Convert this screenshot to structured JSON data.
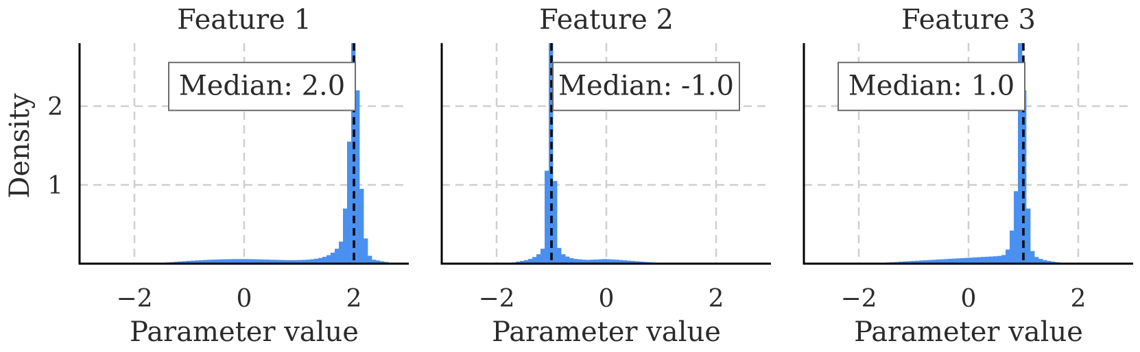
{
  "chart_data": [
    {
      "type": "histogram",
      "title": "Feature 1",
      "xlabel": "Parameter value",
      "ylabel": "Density",
      "xlim": [
        -3,
        3
      ],
      "ylim": [
        0,
        2.8
      ],
      "xticks": [
        -2,
        0,
        2
      ],
      "yticks": [
        1,
        2
      ],
      "xtick_labels": [
        "−2",
        "0",
        "2"
      ],
      "ytick_labels": [
        "1",
        "2"
      ],
      "grid": true,
      "bar_color": "#4a90f0",
      "median": 2.0,
      "median_label": "Median: 2.0",
      "bin_width": 0.075,
      "bins": [
        {
          "x": -1.8,
          "y": 0.004
        },
        {
          "x": -1.725,
          "y": 0.006
        },
        {
          "x": -1.65,
          "y": 0.008
        },
        {
          "x": -1.575,
          "y": 0.01
        },
        {
          "x": -1.5,
          "y": 0.013
        },
        {
          "x": -1.425,
          "y": 0.016
        },
        {
          "x": -1.35,
          "y": 0.02
        },
        {
          "x": -1.275,
          "y": 0.024
        },
        {
          "x": -1.2,
          "y": 0.028
        },
        {
          "x": -1.125,
          "y": 0.031
        },
        {
          "x": -1.05,
          "y": 0.035
        },
        {
          "x": -0.975,
          "y": 0.038
        },
        {
          "x": -0.9,
          "y": 0.041
        },
        {
          "x": -0.825,
          "y": 0.044
        },
        {
          "x": -0.75,
          "y": 0.047
        },
        {
          "x": -0.675,
          "y": 0.049
        },
        {
          "x": -0.6,
          "y": 0.051
        },
        {
          "x": -0.525,
          "y": 0.053
        },
        {
          "x": -0.45,
          "y": 0.055
        },
        {
          "x": -0.375,
          "y": 0.056
        },
        {
          "x": -0.3,
          "y": 0.057
        },
        {
          "x": -0.225,
          "y": 0.058
        },
        {
          "x": -0.15,
          "y": 0.058
        },
        {
          "x": -0.075,
          "y": 0.058
        },
        {
          "x": 0.0,
          "y": 0.058
        },
        {
          "x": 0.075,
          "y": 0.057
        },
        {
          "x": 0.15,
          "y": 0.056
        },
        {
          "x": 0.225,
          "y": 0.055
        },
        {
          "x": 0.3,
          "y": 0.053
        },
        {
          "x": 0.375,
          "y": 0.052
        },
        {
          "x": 0.45,
          "y": 0.05
        },
        {
          "x": 0.525,
          "y": 0.049
        },
        {
          "x": 0.6,
          "y": 0.047
        },
        {
          "x": 0.675,
          "y": 0.046
        },
        {
          "x": 0.75,
          "y": 0.045
        },
        {
          "x": 0.825,
          "y": 0.045
        },
        {
          "x": 0.9,
          "y": 0.045
        },
        {
          "x": 0.975,
          "y": 0.046
        },
        {
          "x": 1.05,
          "y": 0.048
        },
        {
          "x": 1.125,
          "y": 0.051
        },
        {
          "x": 1.2,
          "y": 0.056
        },
        {
          "x": 1.275,
          "y": 0.063
        },
        {
          "x": 1.35,
          "y": 0.073
        },
        {
          "x": 1.425,
          "y": 0.087
        },
        {
          "x": 1.5,
          "y": 0.108
        },
        {
          "x": 1.575,
          "y": 0.14
        },
        {
          "x": 1.65,
          "y": 0.19
        },
        {
          "x": 1.725,
          "y": 0.28
        },
        {
          "x": 1.8,
          "y": 0.7
        },
        {
          "x": 1.875,
          "y": 1.55
        },
        {
          "x": 1.95,
          "y": 2.8
        },
        {
          "x": 2.025,
          "y": 2.2
        },
        {
          "x": 2.1,
          "y": 0.95
        },
        {
          "x": 2.175,
          "y": 0.32
        },
        {
          "x": 2.25,
          "y": 0.1
        },
        {
          "x": 2.325,
          "y": 0.05
        },
        {
          "x": 2.4,
          "y": 0.04
        },
        {
          "x": 2.475,
          "y": 0.03
        },
        {
          "x": 2.55,
          "y": 0.022
        },
        {
          "x": 2.625,
          "y": 0.014
        },
        {
          "x": 2.7,
          "y": 0.008
        },
        {
          "x": 2.775,
          "y": 0.004
        }
      ]
    },
    {
      "type": "histogram",
      "title": "Feature 2",
      "xlabel": "Parameter value",
      "ylabel": "",
      "xlim": [
        -3,
        3
      ],
      "ylim": [
        0,
        2.8
      ],
      "xticks": [
        -2,
        0,
        2
      ],
      "yticks": [
        1,
        2
      ],
      "xtick_labels": [
        "−2",
        "0",
        "2"
      ],
      "ytick_labels": [],
      "grid": true,
      "bar_color": "#4a90f0",
      "median": -1.0,
      "median_label": "Median: -1.0",
      "bin_width": 0.075,
      "bins": [
        {
          "x": -1.8,
          "y": 0.008
        },
        {
          "x": -1.725,
          "y": 0.015
        },
        {
          "x": -1.65,
          "y": 0.025
        },
        {
          "x": -1.575,
          "y": 0.035
        },
        {
          "x": -1.5,
          "y": 0.045
        },
        {
          "x": -1.425,
          "y": 0.06
        },
        {
          "x": -1.35,
          "y": 0.085
        },
        {
          "x": -1.275,
          "y": 0.12
        },
        {
          "x": -1.2,
          "y": 0.19
        },
        {
          "x": -1.125,
          "y": 1.18
        },
        {
          "x": -1.05,
          "y": 2.8
        },
        {
          "x": -0.975,
          "y": 1.05
        },
        {
          "x": -0.9,
          "y": 0.2
        },
        {
          "x": -0.825,
          "y": 0.12
        },
        {
          "x": -0.75,
          "y": 0.09
        },
        {
          "x": -0.675,
          "y": 0.07
        },
        {
          "x": -0.6,
          "y": 0.06
        },
        {
          "x": -0.525,
          "y": 0.055
        },
        {
          "x": -0.45,
          "y": 0.05
        },
        {
          "x": -0.375,
          "y": 0.048
        },
        {
          "x": -0.3,
          "y": 0.05
        },
        {
          "x": -0.225,
          "y": 0.052
        },
        {
          "x": -0.15,
          "y": 0.055
        },
        {
          "x": -0.075,
          "y": 0.058
        },
        {
          "x": 0.0,
          "y": 0.056
        },
        {
          "x": 0.075,
          "y": 0.053
        },
        {
          "x": 0.15,
          "y": 0.05
        },
        {
          "x": 0.225,
          "y": 0.046
        },
        {
          "x": 0.3,
          "y": 0.042
        },
        {
          "x": 0.375,
          "y": 0.038
        },
        {
          "x": 0.45,
          "y": 0.034
        },
        {
          "x": 0.525,
          "y": 0.03
        },
        {
          "x": 0.6,
          "y": 0.026
        },
        {
          "x": 0.675,
          "y": 0.022
        },
        {
          "x": 0.75,
          "y": 0.018
        },
        {
          "x": 0.825,
          "y": 0.015
        },
        {
          "x": 0.9,
          "y": 0.012
        },
        {
          "x": 0.975,
          "y": 0.009
        },
        {
          "x": 1.05,
          "y": 0.007
        },
        {
          "x": 1.125,
          "y": 0.005
        },
        {
          "x": 1.2,
          "y": 0.004
        }
      ]
    },
    {
      "type": "histogram",
      "title": "Feature 3",
      "xlabel": "Parameter value",
      "ylabel": "",
      "xlim": [
        -3,
        3
      ],
      "ylim": [
        0,
        2.8
      ],
      "xticks": [
        -2,
        0,
        2
      ],
      "yticks": [
        1,
        2
      ],
      "xtick_labels": [
        "−2",
        "0",
        "2"
      ],
      "ytick_labels": [],
      "grid": true,
      "bar_color": "#4a90f0",
      "median": 1.0,
      "median_label": "Median: 1.0",
      "bin_width": 0.075,
      "bins": [
        {
          "x": -1.8,
          "y": 0.004
        },
        {
          "x": -1.725,
          "y": 0.006
        },
        {
          "x": -1.65,
          "y": 0.009
        },
        {
          "x": -1.575,
          "y": 0.012
        },
        {
          "x": -1.5,
          "y": 0.015
        },
        {
          "x": -1.425,
          "y": 0.018
        },
        {
          "x": -1.35,
          "y": 0.021
        },
        {
          "x": -1.275,
          "y": 0.025
        },
        {
          "x": -1.2,
          "y": 0.028
        },
        {
          "x": -1.125,
          "y": 0.031
        },
        {
          "x": -1.05,
          "y": 0.034
        },
        {
          "x": -0.975,
          "y": 0.037
        },
        {
          "x": -0.9,
          "y": 0.04
        },
        {
          "x": -0.825,
          "y": 0.043
        },
        {
          "x": -0.75,
          "y": 0.046
        },
        {
          "x": -0.675,
          "y": 0.049
        },
        {
          "x": -0.6,
          "y": 0.052
        },
        {
          "x": -0.525,
          "y": 0.055
        },
        {
          "x": -0.45,
          "y": 0.058
        },
        {
          "x": -0.375,
          "y": 0.061
        },
        {
          "x": -0.3,
          "y": 0.064
        },
        {
          "x": -0.225,
          "y": 0.067
        },
        {
          "x": -0.15,
          "y": 0.07
        },
        {
          "x": -0.075,
          "y": 0.073
        },
        {
          "x": 0.0,
          "y": 0.076
        },
        {
          "x": 0.075,
          "y": 0.079
        },
        {
          "x": 0.15,
          "y": 0.082
        },
        {
          "x": 0.225,
          "y": 0.085
        },
        {
          "x": 0.3,
          "y": 0.088
        },
        {
          "x": 0.375,
          "y": 0.091
        },
        {
          "x": 0.45,
          "y": 0.094
        },
        {
          "x": 0.525,
          "y": 0.098
        },
        {
          "x": 0.6,
          "y": 0.11
        },
        {
          "x": 0.675,
          "y": 0.18
        },
        {
          "x": 0.75,
          "y": 0.42
        },
        {
          "x": 0.825,
          "y": 0.92
        },
        {
          "x": 0.9,
          "y": 2.8
        },
        {
          "x": 0.975,
          "y": 2.2
        },
        {
          "x": 1.05,
          "y": 0.7
        },
        {
          "x": 1.125,
          "y": 0.16
        },
        {
          "x": 1.2,
          "y": 0.085
        },
        {
          "x": 1.275,
          "y": 0.06
        },
        {
          "x": 1.35,
          "y": 0.045
        },
        {
          "x": 1.425,
          "y": 0.035
        },
        {
          "x": 1.5,
          "y": 0.026
        },
        {
          "x": 1.575,
          "y": 0.018
        },
        {
          "x": 1.65,
          "y": 0.01
        },
        {
          "x": 1.725,
          "y": 0.005
        }
      ]
    }
  ]
}
